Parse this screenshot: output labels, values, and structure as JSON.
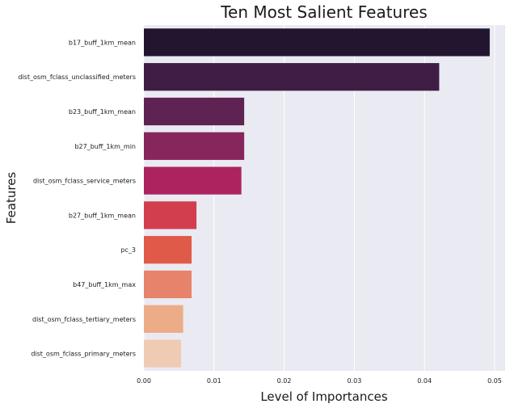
{
  "chart_data": {
    "type": "bar",
    "orientation": "horizontal",
    "title": "Ten Most Salient Features",
    "xlabel": "Level of Importances",
    "ylabel": "Features",
    "categories": [
      "b17_buff_1km_mean",
      "dist_osm_fclass_unclassified_meters",
      "b23_buff_1km_mean",
      "b27_buff_1km_min",
      "dist_osm_fclass_service_meters",
      "b27_buff_1km_mean",
      "pc_3",
      "b47_buff_1km_max",
      "dist_osm_fclass_tertiary_meters",
      "dist_osm_fclass_primary_meters"
    ],
    "values": [
      0.0493,
      0.0421,
      0.0143,
      0.0143,
      0.0139,
      0.0075,
      0.0068,
      0.0068,
      0.0056,
      0.0053
    ],
    "colors": [
      "#221530",
      "#3f1d44",
      "#5f2353",
      "#86265c",
      "#ad2360",
      "#d33e4f",
      "#e05a49",
      "#e6836a",
      "#ecac88",
      "#f0cbb3"
    ],
    "xlim": [
      0,
      0.0515
    ],
    "xticks": [
      "0.00",
      "0.01",
      "0.02",
      "0.03",
      "0.04",
      "0.05"
    ],
    "xtick_values": [
      0,
      0.01,
      0.02,
      0.03,
      0.04,
      0.05
    ],
    "grid": true,
    "background": "#eaeaf2"
  }
}
